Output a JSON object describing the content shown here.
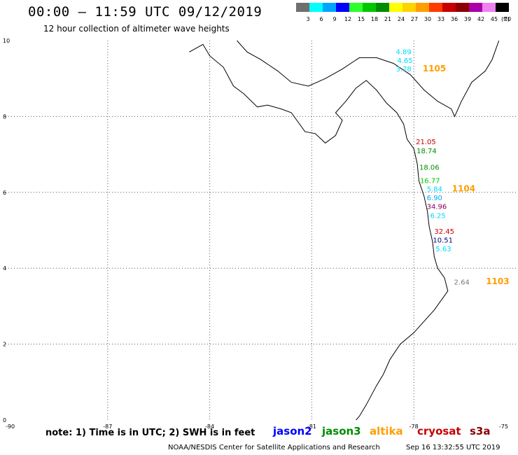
{
  "title": "00:00 – 11:59 UTC 09/12/2019",
  "subtitle": "12 hour collection of altimeter wave heights",
  "color_scale": {
    "unit": "(ft)",
    "bins": [
      {
        "label": "3",
        "color": "#6f6f6f"
      },
      {
        "label": "6",
        "color": "#00ffff"
      },
      {
        "label": "9",
        "color": "#00a5ff"
      },
      {
        "label": "12",
        "color": "#0000ff"
      },
      {
        "label": "15",
        "color": "#2cff2c"
      },
      {
        "label": "18",
        "color": "#00c800"
      },
      {
        "label": "21",
        "color": "#008c00"
      },
      {
        "label": "24",
        "color": "#ffff00"
      },
      {
        "label": "27",
        "color": "#ffd200"
      },
      {
        "label": "30",
        "color": "#ff9e00"
      },
      {
        "label": "33",
        "color": "#ff3a00"
      },
      {
        "label": "36",
        "color": "#c80000"
      },
      {
        "label": "39",
        "color": "#8c0000"
      },
      {
        "label": "42",
        "color": "#aa00aa"
      },
      {
        "label": "45",
        "color": "#ee82ee"
      },
      {
        "label": "70",
        "color": "#000000"
      }
    ]
  },
  "axes": {
    "x_ticks": [
      "-90",
      "-87",
      "-84",
      "-81",
      "-78",
      "-75"
    ],
    "y_ticks": [
      "10",
      "8",
      "6",
      "4",
      "2",
      "0"
    ]
  },
  "observations": [
    {
      "value": "4.89",
      "color": "#00d8ff",
      "lon": -78.53,
      "lat": 9.64
    },
    {
      "value": "4.65",
      "color": "#00d8ff",
      "lon": -78.49,
      "lat": 9.41
    },
    {
      "value": "3.78",
      "color": "#00d8ff",
      "lon": -78.53,
      "lat": 9.19
    },
    {
      "value": "21.05",
      "color": "#c80000",
      "lon": -77.94,
      "lat": 7.27
    },
    {
      "value": "18.74",
      "color": "#008c00",
      "lon": -77.92,
      "lat": 7.03
    },
    {
      "value": "18.06",
      "color": "#008c00",
      "lon": -77.84,
      "lat": 6.6
    },
    {
      "value": "16.77",
      "color": "#00c800",
      "lon": -77.82,
      "lat": 6.25
    },
    {
      "value": "5.84",
      "color": "#00d8ff",
      "lon": -77.62,
      "lat": 6.02
    },
    {
      "value": "6.90",
      "color": "#00a5ff",
      "lon": -77.62,
      "lat": 5.79
    },
    {
      "value": "34.96",
      "color": "#8c0060",
      "lon": -77.62,
      "lat": 5.56
    },
    {
      "value": "6.25",
      "color": "#00d8ff",
      "lon": -77.52,
      "lat": 5.32
    },
    {
      "value": "32.45",
      "color": "#c80000",
      "lon": -77.4,
      "lat": 4.91
    },
    {
      "value": "10.51",
      "color": "#000080",
      "lon": -77.44,
      "lat": 4.68
    },
    {
      "value": "5.63",
      "color": "#00d8ff",
      "lon": -77.36,
      "lat": 4.45
    },
    {
      "value": "2.64",
      "color": "#7a7a7a",
      "lon": -76.82,
      "lat": 3.57
    }
  ],
  "track_labels": [
    {
      "label": "1105",
      "color": "#ff9e00",
      "lon": -77.74,
      "lat": 9.19
    },
    {
      "label": "1104",
      "color": "#ff9e00",
      "lon": -76.88,
      "lat": 6.02
    },
    {
      "label": "1103",
      "color": "#ff9e00",
      "lon": -75.88,
      "lat": 3.58
    }
  ],
  "note": "note: 1) Time is in UTC; 2) SWH is in feet",
  "legend": [
    {
      "name": "jason2",
      "color": "#0000ff"
    },
    {
      "name": "jason3",
      "color": "#008c00"
    },
    {
      "name": "altika",
      "color": "#ff9e00"
    },
    {
      "name": "cryosat",
      "color": "#c80000"
    },
    {
      "name": "s3a",
      "color": "#8c0000"
    }
  ],
  "credit": "NOAA/NESDIS Center for Satellite Applications and Research",
  "timestamp": "Sep 16 13:32:55 UTC 2019"
}
